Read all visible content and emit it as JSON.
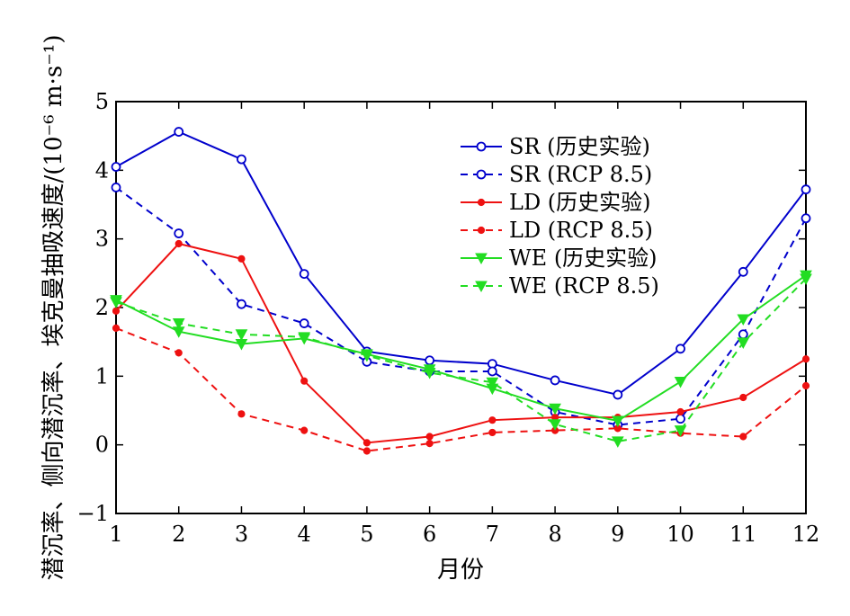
{
  "chart_data": {
    "type": "line",
    "xlabel": "月份",
    "ylabel": "潜沉率、侧向潜沉率、埃克曼抽吸速度/(10⁻⁶ m·s⁻¹)",
    "x": [
      1,
      2,
      3,
      4,
      5,
      6,
      7,
      8,
      9,
      10,
      11,
      12
    ],
    "xlim": [
      1,
      12
    ],
    "ylim": [
      -1,
      5
    ],
    "yticks": [
      -1,
      0,
      1,
      2,
      3,
      4,
      5
    ],
    "legend_position": "top-right",
    "grid": false,
    "series": [
      {
        "name": "SR (历史实验)",
        "color": "#0000cc",
        "dash": "solid",
        "marker": "circle-open",
        "values": [
          4.05,
          4.56,
          4.16,
          2.49,
          1.36,
          1.23,
          1.18,
          0.94,
          0.73,
          1.4,
          2.52,
          3.72
        ]
      },
      {
        "name": "SR (RCP 8.5)",
        "color": "#0000cc",
        "dash": "dashed",
        "marker": "circle-open",
        "values": [
          3.75,
          3.08,
          2.05,
          1.77,
          1.21,
          1.07,
          1.07,
          0.48,
          0.29,
          0.38,
          1.61,
          3.3
        ]
      },
      {
        "name": "LD (历史实验)",
        "color": "#ee1111",
        "dash": "solid",
        "marker": "dot",
        "values": [
          1.95,
          2.93,
          2.71,
          0.93,
          0.03,
          0.12,
          0.36,
          0.4,
          0.4,
          0.48,
          0.69,
          1.25
        ]
      },
      {
        "name": "LD (RCP 8.5)",
        "color": "#ee1111",
        "dash": "dashed",
        "marker": "dot",
        "values": [
          1.7,
          1.34,
          0.45,
          0.21,
          -0.09,
          0.02,
          0.18,
          0.21,
          0.24,
          0.17,
          0.12,
          0.86
        ]
      },
      {
        "name": "WE (历史实验)",
        "color": "#22dd22",
        "dash": "solid",
        "marker": "triangle-down",
        "values": [
          2.11,
          1.65,
          1.47,
          1.55,
          1.32,
          1.1,
          0.82,
          0.53,
          0.35,
          0.92,
          1.83,
          2.47
        ]
      },
      {
        "name": "WE (RCP 8.5)",
        "color": "#22dd22",
        "dash": "dashed",
        "marker": "triangle-down",
        "values": [
          2.08,
          1.77,
          1.61,
          1.57,
          1.3,
          1.05,
          0.91,
          0.3,
          0.05,
          0.21,
          1.49,
          2.42
        ]
      }
    ]
  }
}
